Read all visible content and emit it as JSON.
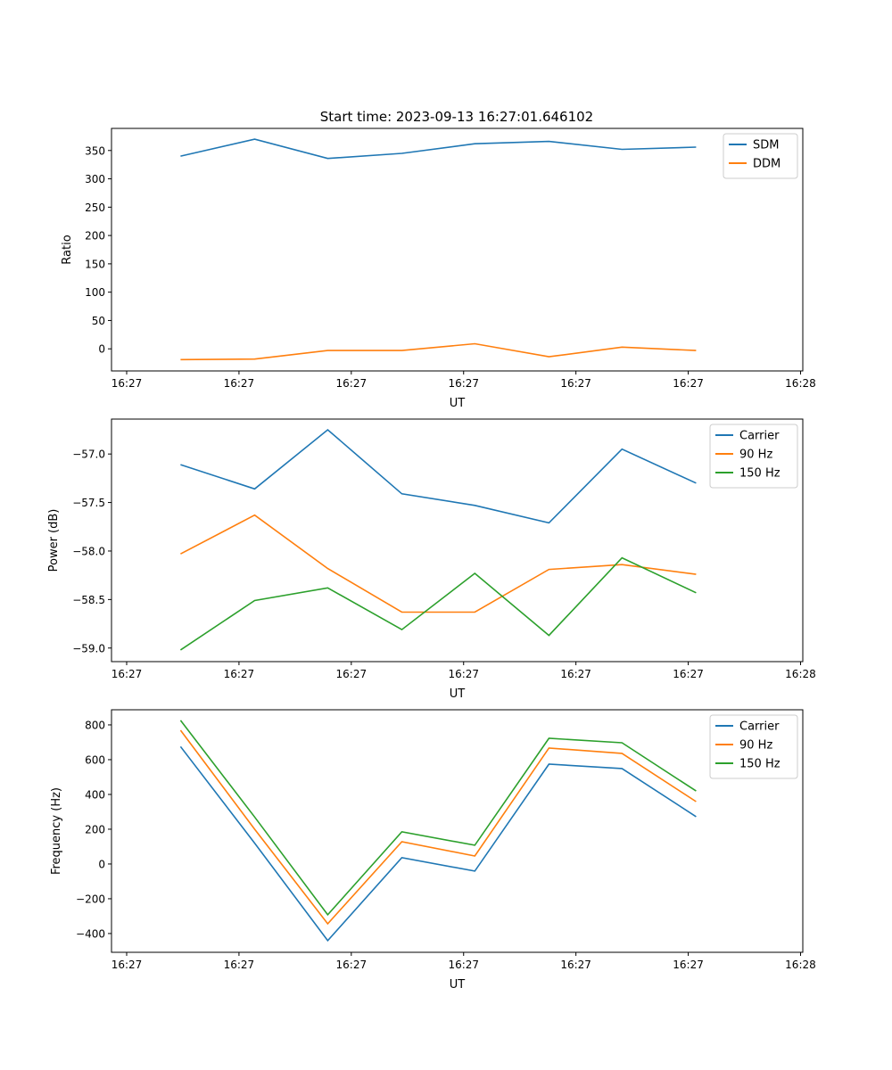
{
  "title": "Start time: 2023-09-13 16:27:01.646102",
  "colors": {
    "blue": "#1f77b4",
    "orange": "#ff7f0e",
    "green": "#2ca02c"
  },
  "chart_data": [
    {
      "type": "line",
      "ylabel": "Ratio",
      "xlabel": "UT",
      "x": [
        4.8,
        11.4,
        17.9,
        24.5,
        31.0,
        37.6,
        44.1,
        50.7
      ],
      "xlim": [
        -1.35,
        60.2
      ],
      "xticks": [
        0,
        10,
        20,
        30,
        40,
        50,
        60
      ],
      "xtick_labels": [
        "16:27",
        "16:27",
        "16:27",
        "16:27",
        "16:27",
        "16:27",
        "16:28"
      ],
      "ylim": [
        -39,
        389
      ],
      "yticks": [
        0,
        50,
        100,
        150,
        200,
        250,
        300,
        350
      ],
      "ytick_labels": [
        "0",
        "50",
        "100",
        "150",
        "200",
        "250",
        "300",
        "350"
      ],
      "legend": "top-right",
      "series": [
        {
          "name": "SDM",
          "color": "#1f77b4",
          "values": [
            340,
            370,
            336,
            345,
            362,
            366,
            352,
            356
          ]
        },
        {
          "name": "DDM",
          "color": "#ff7f0e",
          "values": [
            -19,
            -18,
            -3,
            -3,
            9,
            -14,
            3,
            -3
          ]
        }
      ]
    },
    {
      "type": "line",
      "ylabel": "Power (dB)",
      "xlabel": "UT",
      "x": [
        4.8,
        11.4,
        17.9,
        24.5,
        31.0,
        37.6,
        44.1,
        50.7
      ],
      "xlim": [
        -1.35,
        60.2
      ],
      "xticks": [
        0,
        10,
        20,
        30,
        40,
        50,
        60
      ],
      "xtick_labels": [
        "16:27",
        "16:27",
        "16:27",
        "16:27",
        "16:27",
        "16:27",
        "16:28"
      ],
      "ylim": [
        -59.14,
        -56.64
      ],
      "yticks": [
        -59.0,
        -58.5,
        -58.0,
        -57.5,
        -57.0
      ],
      "ytick_labels": [
        "−59.0",
        "−58.5",
        "−58.0",
        "−57.5",
        "−57.0"
      ],
      "legend": "top-right",
      "series": [
        {
          "name": "Carrier",
          "color": "#1f77b4",
          "values": [
            -57.11,
            -57.36,
            -56.75,
            -57.41,
            -57.53,
            -57.71,
            -56.95,
            -57.3
          ]
        },
        {
          "name": "90 Hz",
          "color": "#ff7f0e",
          "values": [
            -58.03,
            -57.63,
            -58.18,
            -58.63,
            -58.63,
            -58.19,
            -58.14,
            -58.24
          ]
        },
        {
          "name": "150 Hz",
          "color": "#2ca02c",
          "values": [
            -59.02,
            -58.51,
            -58.38,
            -58.81,
            -58.23,
            -58.87,
            -58.07,
            -58.43
          ]
        }
      ]
    },
    {
      "type": "line",
      "ylabel": "Frequency (Hz)",
      "xlabel": "UT",
      "x": [
        4.8,
        11.4,
        17.9,
        24.5,
        31.0,
        37.6,
        44.1,
        50.7
      ],
      "xlim": [
        -1.35,
        60.2
      ],
      "xticks": [
        0,
        10,
        20,
        30,
        40,
        50,
        60
      ],
      "xtick_labels": [
        "16:27",
        "16:27",
        "16:27",
        "16:27",
        "16:27",
        "16:27",
        "16:28"
      ],
      "ylim": [
        -508,
        887
      ],
      "yticks": [
        -400,
        -200,
        0,
        200,
        400,
        600,
        800
      ],
      "ytick_labels": [
        "−400",
        "−200",
        "0",
        "200",
        "400",
        "600",
        "800"
      ],
      "legend": "top-right",
      "series": [
        {
          "name": "Carrier",
          "color": "#1f77b4",
          "values": [
            675,
            120,
            -441,
            36,
            -41,
            574,
            549,
            272
          ]
        },
        {
          "name": "90 Hz",
          "color": "#ff7f0e",
          "values": [
            769,
            200,
            -344,
            128,
            46,
            667,
            636,
            359
          ]
        },
        {
          "name": "150 Hz",
          "color": "#2ca02c",
          "values": [
            826,
            270,
            -292,
            185,
            108,
            723,
            697,
            420
          ]
        }
      ]
    }
  ]
}
